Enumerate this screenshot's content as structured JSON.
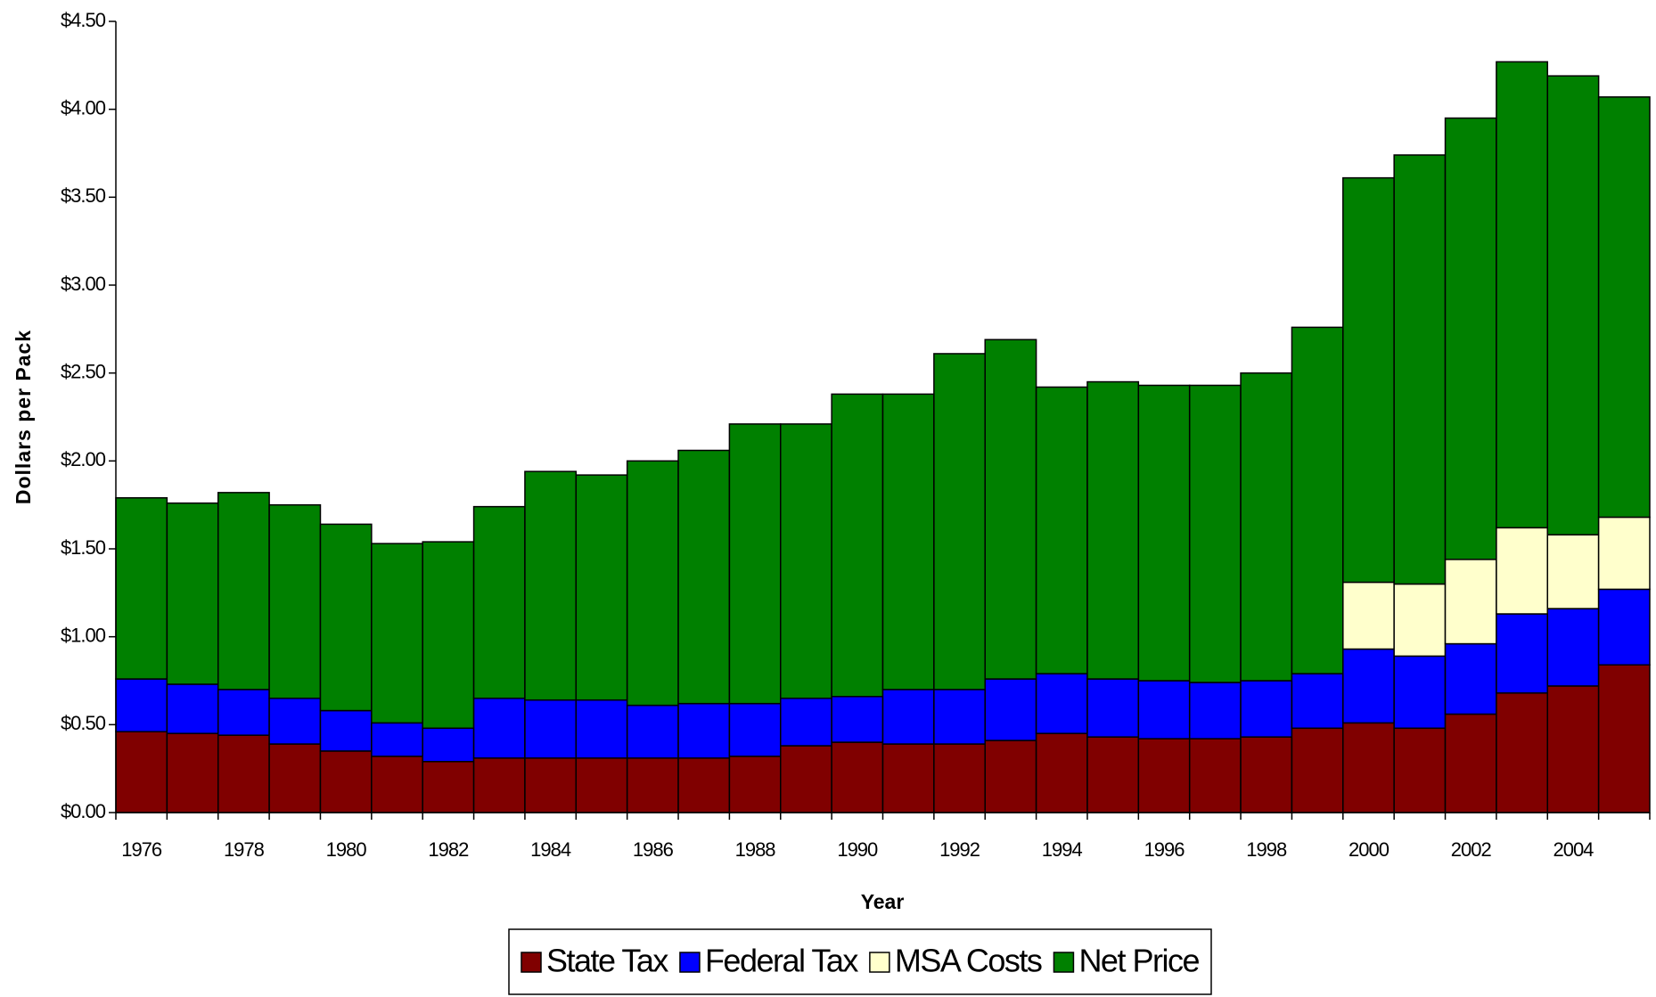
{
  "chart_data": {
    "type": "stacked_bar",
    "x_label": "Year",
    "y_label": "Dollars per Pack",
    "categories": [
      "1976",
      null,
      "1978",
      null,
      "1980",
      null,
      "1982",
      null,
      "1984",
      null,
      "1986",
      null,
      "1988",
      null,
      "1990",
      null,
      "1992",
      null,
      "1994",
      null,
      "1996",
      null,
      "1998",
      null,
      "2000",
      null,
      "2002",
      null,
      "2004",
      null
    ],
    "series": [
      {
        "name": "State Tax",
        "color": "#800000",
        "values": [
          0.46,
          0.45,
          0.44,
          0.39,
          0.35,
          0.32,
          0.29,
          0.31,
          0.31,
          0.31,
          0.31,
          0.31,
          0.32,
          0.38,
          0.4,
          0.39,
          0.39,
          0.41,
          0.45,
          0.43,
          0.42,
          0.42,
          0.43,
          0.48,
          0.51,
          0.48,
          0.56,
          0.68,
          0.72,
          0.84
        ]
      },
      {
        "name": "Federal Tax",
        "color": "#0000ff",
        "values": [
          0.3,
          0.28,
          0.26,
          0.26,
          0.23,
          0.19,
          0.19,
          0.34,
          0.33,
          0.33,
          0.3,
          0.31,
          0.3,
          0.27,
          0.26,
          0.31,
          0.31,
          0.35,
          0.34,
          0.33,
          0.33,
          0.32,
          0.32,
          0.31,
          0.42,
          0.41,
          0.4,
          0.45,
          0.44,
          0.43
        ]
      },
      {
        "name": "MSA Costs",
        "color": "#ffffcc",
        "values": [
          0,
          0,
          0,
          0,
          0,
          0,
          0,
          0,
          0,
          0,
          0,
          0,
          0,
          0,
          0,
          0,
          0,
          0,
          0,
          0,
          0,
          0,
          0,
          0,
          0.38,
          0.41,
          0.48,
          0.49,
          0.42,
          0.41
        ]
      },
      {
        "name": "Net Price",
        "color": "#008000",
        "values": [
          1.03,
          1.03,
          1.12,
          1.1,
          1.06,
          1.02,
          1.06,
          1.09,
          1.3,
          1.28,
          1.39,
          1.44,
          1.59,
          1.56,
          1.72,
          1.68,
          1.91,
          1.93,
          1.63,
          1.69,
          1.68,
          1.69,
          1.75,
          1.97,
          2.3,
          2.44,
          2.51,
          2.65,
          2.61,
          2.39
        ]
      }
    ],
    "ylim": [
      0,
      4.5
    ],
    "yticks": [
      {
        "value": 0,
        "label": "$0.00"
      },
      {
        "value": 0.5,
        "label": "$0.50"
      },
      {
        "value": 1,
        "label": "$1.00"
      },
      {
        "value": 1.5,
        "label": "$1.50"
      },
      {
        "value": 2,
        "label": "$2.00"
      },
      {
        "value": 2.5,
        "label": "$2.50"
      },
      {
        "value": 3,
        "label": "$3.00"
      },
      {
        "value": 3.5,
        "label": "$3.50"
      },
      {
        "value": 4,
        "label": "$4.00"
      },
      {
        "value": 4.5,
        "label": "$4.50"
      }
    ],
    "legend": "bottom"
  }
}
